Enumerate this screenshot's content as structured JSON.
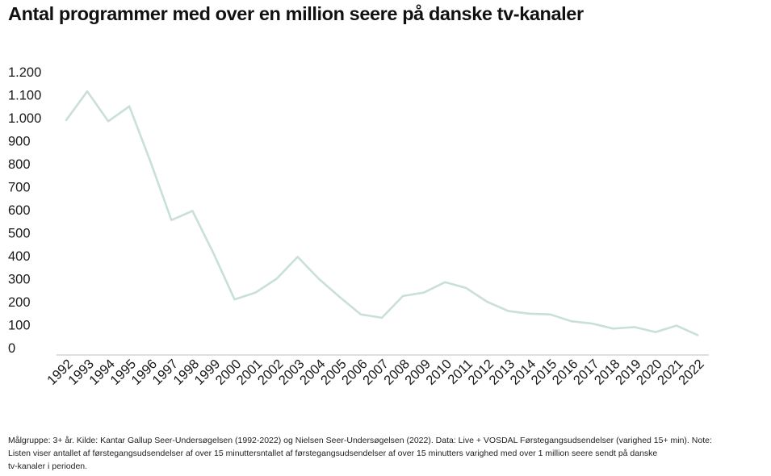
{
  "chart_data": {
    "type": "line",
    "title": "Antal programmer med over en million seere på danske tv-kanaler",
    "xlabel": "",
    "ylabel": "",
    "ylim": [
      0,
      1200
    ],
    "yticks": [
      {
        "value": 0,
        "label": "0"
      },
      {
        "value": 100,
        "label": "100"
      },
      {
        "value": 200,
        "label": "200"
      },
      {
        "value": 300,
        "label": "300"
      },
      {
        "value": 400,
        "label": "400"
      },
      {
        "value": 500,
        "label": "500"
      },
      {
        "value": 600,
        "label": "600"
      },
      {
        "value": 700,
        "label": "700"
      },
      {
        "value": 800,
        "label": "800"
      },
      {
        "value": 900,
        "label": "900"
      },
      {
        "value": 1000,
        "label": "1.000"
      },
      {
        "value": 1100,
        "label": "1.100"
      },
      {
        "value": 1200,
        "label": "1.200"
      }
    ],
    "categories": [
      "1992",
      "1993",
      "1994",
      "1995",
      "1996",
      "1997",
      "1998",
      "1999",
      "2000",
      "2001",
      "2002",
      "2003",
      "2004",
      "2005",
      "2006",
      "2007",
      "2008",
      "2009",
      "2010",
      "2011",
      "2012",
      "2013",
      "2014",
      "2015",
      "2016",
      "2017",
      "2018",
      "2019",
      "2020",
      "2021",
      "2022"
    ],
    "series": [
      {
        "values": [
          990,
          1115,
          985,
          1050,
          810,
          555,
          595,
          410,
          210,
          240,
          300,
          395,
          300,
          220,
          145,
          130,
          225,
          240,
          285,
          260,
          200,
          160,
          148,
          145,
          115,
          105,
          83,
          90,
          68,
          96,
          55
        ],
        "color": "#c8e0d6"
      }
    ],
    "grid": false,
    "legend": "none"
  },
  "footnote": {
    "line1": "Målgruppe: 3+ år. Kilde: Kantar Gallup Seer-Undersøgelsen (1992-2022) og Nielsen Seer-Undersøgelsen (2022). Data: Live + VOSDAL Førstegangsudsendelser (varighed 15+ min). Note:",
    "line2": "Listen viser antallet af førstegangsudsendelser af over 15 minuttersntallet af førstegangsudsendelser af over 15 minutters varighed med over 1 million seere sendt på danske",
    "line3": "tv-kanaler i perioden."
  },
  "colors": {
    "line": "#c8e0d6",
    "axis": "#cccccc",
    "text": "#1a1a1a"
  }
}
